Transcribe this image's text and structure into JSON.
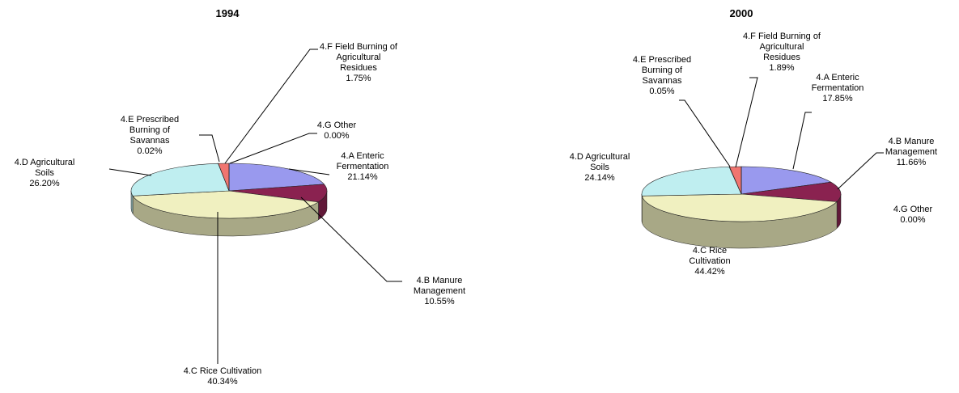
{
  "chart_data": [
    {
      "type": "pie",
      "title": "1994",
      "slices": [
        {
          "label": [
            "4.A Enteric",
            "Fermentation",
            "21.14%"
          ],
          "value": 21.14,
          "color": "#9999ee"
        },
        {
          "label": [
            "4.B Manure",
            "Management",
            "10.55%"
          ],
          "value": 10.55,
          "color": "#8a2250"
        },
        {
          "label": [
            "4.C Rice Cultivation",
            "40.34%"
          ],
          "value": 40.34,
          "color": "#f0f0c0"
        },
        {
          "label": [
            "4.D Agricultural",
            "Soils",
            "26.20%"
          ],
          "value": 26.2,
          "color": "#bfeef0"
        },
        {
          "label": [
            "4.E Prescribed",
            "Burning of",
            "Savannas",
            "0.02%"
          ],
          "value": 0.02,
          "color": "#7a4aa0"
        },
        {
          "label": [
            "4.F Field Burning of",
            "Agricultural",
            "Residues",
            "1.75%"
          ],
          "value": 1.75,
          "color": "#f07570"
        },
        {
          "label": [
            "4.G Other",
            "0.00%"
          ],
          "value": 0.0,
          "color": "#3f7fb5"
        }
      ]
    },
    {
      "type": "pie",
      "title": "2000",
      "slices": [
        {
          "label": [
            "4.A Enteric",
            "Fermentation",
            "17.85%"
          ],
          "value": 17.85,
          "color": "#9999ee"
        },
        {
          "label": [
            "4.B Manure",
            "Management",
            "11.66%"
          ],
          "value": 11.66,
          "color": "#8a2250"
        },
        {
          "label": [
            "4.C Rice",
            "Cultivation",
            "44.42%"
          ],
          "value": 44.42,
          "color": "#f0f0c0"
        },
        {
          "label": [
            "4.D Agricultural",
            "Soils",
            "24.14%"
          ],
          "value": 24.14,
          "color": "#bfeef0"
        },
        {
          "label": [
            "4.E Prescribed",
            "Burning of",
            "Savannas",
            "0.05%"
          ],
          "value": 0.05,
          "color": "#7a4aa0"
        },
        {
          "label": [
            "4.F Field Burning of",
            "Agricultural",
            "Residues",
            "1.89%"
          ],
          "value": 1.89,
          "color": "#f07570"
        },
        {
          "label": [
            "4.G Other",
            "0.00%"
          ],
          "value": 0.0,
          "color": "#3f7fb5"
        }
      ]
    }
  ]
}
